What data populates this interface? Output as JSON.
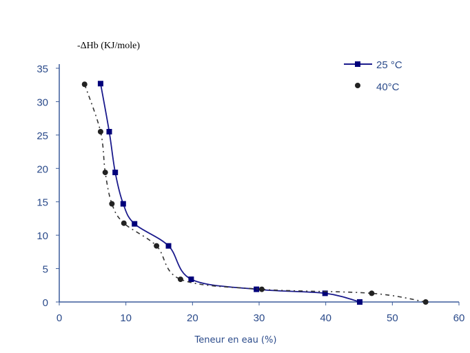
{
  "chart_data": {
    "type": "line",
    "title": "",
    "ylabel": "-ΔHb (KJ/mole)",
    "xlabel": "Teneur en eau (%)",
    "xlim": [
      0,
      60
    ],
    "ylim": [
      0,
      35
    ],
    "xticks": [
      "0",
      "10",
      "20",
      "30",
      "40",
      "50",
      "60"
    ],
    "yticks": [
      "0",
      "5",
      "10",
      "15",
      "20",
      "25",
      "30",
      "35"
    ],
    "legend_position": "top-right",
    "series": [
      {
        "name": "25 °C",
        "color": "#1a1a8c",
        "marker": "square",
        "line": "solid",
        "x": [
          6.2,
          7.5,
          8.4,
          9.6,
          11.3,
          16.4,
          19.8,
          29.6,
          39.9,
          45.1
        ],
        "y": [
          32.7,
          25.5,
          19.4,
          14.7,
          11.7,
          8.4,
          3.4,
          1.9,
          1.3,
          0
        ]
      },
      {
        "name": "40°C",
        "color": "#333333",
        "marker": "circle",
        "line": "dashdot",
        "x": [
          3.8,
          6.2,
          6.9,
          7.9,
          9.7,
          14.6,
          18.2,
          30.4,
          46.9,
          55.0
        ],
        "y": [
          32.6,
          25.5,
          19.4,
          14.7,
          11.8,
          8.4,
          3.4,
          1.9,
          1.3,
          0
        ]
      }
    ]
  }
}
